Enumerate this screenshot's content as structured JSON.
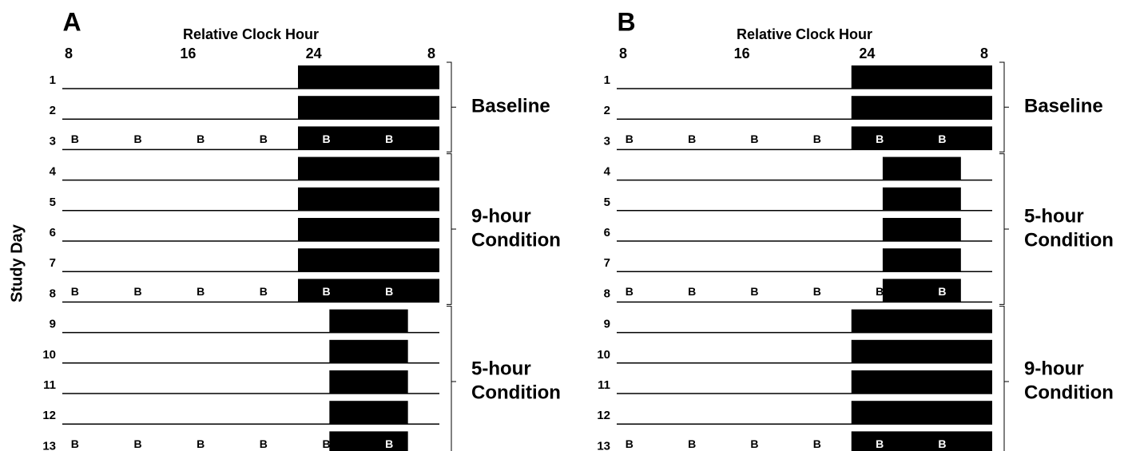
{
  "y_label": "Study Day",
  "panels": [
    {
      "label": "A",
      "axis_title": "Relative Clock Hour",
      "xlim": [
        8,
        32
      ],
      "xticks": [
        8,
        16,
        24,
        {
          "value": 32,
          "label": "8"
        }
      ],
      "groups": [
        {
          "label_lines": [
            "Baseline"
          ],
          "days": [
            {
              "label": "1",
              "sleep": [
                23,
                32
              ]
            },
            {
              "label": "2",
              "sleep": [
                23,
                32
              ]
            },
            {
              "label": "3",
              "sleep": [
                23,
                32
              ],
              "markers": [
                "B",
                "B",
                "B",
                "B",
                "B",
                "B"
              ]
            }
          ]
        },
        {
          "label_lines": [
            "9-hour",
            "Condition"
          ],
          "days": [
            {
              "label": "4",
              "sleep": [
                23,
                32
              ]
            },
            {
              "label": "5",
              "sleep": [
                23,
                32
              ]
            },
            {
              "label": "6",
              "sleep": [
                23,
                32
              ]
            },
            {
              "label": "7",
              "sleep": [
                23,
                32
              ]
            },
            {
              "label": "8",
              "sleep": [
                23,
                32
              ],
              "markers": [
                "B",
                "B",
                "B",
                "B",
                "B",
                "B"
              ]
            }
          ]
        },
        {
          "label_lines": [
            "5-hour",
            "Condition"
          ],
          "days": [
            {
              "label": "9",
              "sleep": [
                25,
                30
              ]
            },
            {
              "label": "10",
              "sleep": [
                25,
                30
              ]
            },
            {
              "label": "11",
              "sleep": [
                25,
                30
              ]
            },
            {
              "label": "12",
              "sleep": [
                25,
                30
              ]
            },
            {
              "label": "13",
              "sleep": [
                25,
                30
              ],
              "markers": [
                "B",
                "B",
                "B",
                "B",
                "B",
                "B"
              ]
            }
          ]
        }
      ]
    },
    {
      "label": "B",
      "axis_title": "Relative Clock Hour",
      "xlim": [
        8,
        32
      ],
      "xticks": [
        8,
        16,
        24,
        {
          "value": 32,
          "label": "8"
        }
      ],
      "groups": [
        {
          "label_lines": [
            "Baseline"
          ],
          "days": [
            {
              "label": "1",
              "sleep": [
                23,
                32
              ]
            },
            {
              "label": "2",
              "sleep": [
                23,
                32
              ]
            },
            {
              "label": "3",
              "sleep": [
                23,
                32
              ],
              "markers": [
                "B",
                "B",
                "B",
                "B",
                "B",
                "B"
              ]
            }
          ]
        },
        {
          "label_lines": [
            "5-hour",
            "Condition"
          ],
          "days": [
            {
              "label": "4",
              "sleep": [
                25,
                30
              ]
            },
            {
              "label": "5",
              "sleep": [
                25,
                30
              ]
            },
            {
              "label": "6",
              "sleep": [
                25,
                30
              ]
            },
            {
              "label": "7",
              "sleep": [
                25,
                30
              ]
            },
            {
              "label": "8",
              "sleep": [
                25,
                30
              ],
              "markers": [
                "B",
                "B",
                "B",
                "B",
                "B",
                "B"
              ]
            }
          ]
        },
        {
          "label_lines": [
            "9-hour",
            "Condition"
          ],
          "days": [
            {
              "label": "9",
              "sleep": [
                23,
                32
              ]
            },
            {
              "label": "10",
              "sleep": [
                23,
                32
              ]
            },
            {
              "label": "11",
              "sleep": [
                23,
                32
              ]
            },
            {
              "label": "12",
              "sleep": [
                23,
                32
              ]
            },
            {
              "label": "13",
              "sleep": [
                23,
                32
              ],
              "markers": [
                "B",
                "B",
                "B",
                "B",
                "B",
                "B"
              ]
            }
          ]
        }
      ]
    }
  ]
}
